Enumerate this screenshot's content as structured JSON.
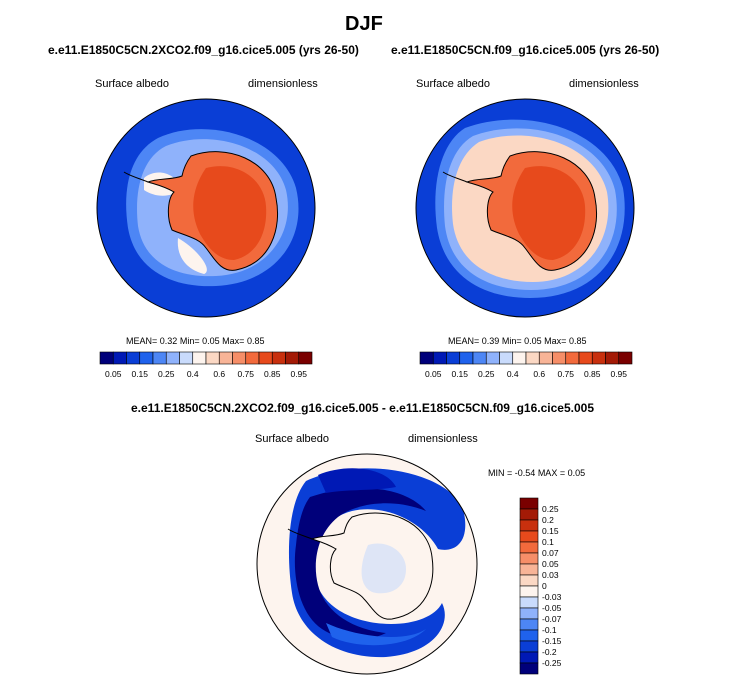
{
  "figure": {
    "title": "DJF"
  },
  "chart_data": [
    {
      "type": "heatmap",
      "projection": "south-polar-stereographic",
      "title": "e.e11.E1850C5CN.2XCO2.f09_g16.cice5.005 (yrs 26-50)",
      "left_label": "Surface albedo",
      "right_label": "dimensionless",
      "stats": {
        "mean_label": "MEAN=",
        "mean": "0.32",
        "min_label": "Min=",
        "min": "0.05",
        "max_label": "Max=",
        "max": "0.85"
      },
      "colorbar": {
        "orientation": "horizontal",
        "tick_labels": [
          "0.05",
          "0.15",
          "0.25",
          "0.4",
          "0.6",
          "0.75",
          "0.85",
          "0.95"
        ],
        "colors": [
          "#00007a",
          "#0019b5",
          "#0a3ed6",
          "#1f62ec",
          "#4d86f5",
          "#8fb2fb",
          "#c9dbfc",
          "#fdf4ee",
          "#fbd8c4",
          "#f8b497",
          "#f68e68",
          "#f26a3c",
          "#e74a1c",
          "#c8300e",
          "#a31a06",
          "#7a0000"
        ]
      }
    },
    {
      "type": "heatmap",
      "projection": "south-polar-stereographic",
      "title": "e.e11.E1850C5CN.f09_g16.cice5.005 (yrs 26-50)",
      "left_label": "Surface albedo",
      "right_label": "dimensionless",
      "stats": {
        "mean_label": "MEAN=",
        "mean": "0.39",
        "min_label": "Min=",
        "min": "0.05",
        "max_label": "Max=",
        "max": "0.85"
      },
      "colorbar": {
        "orientation": "horizontal",
        "tick_labels": [
          "0.05",
          "0.15",
          "0.25",
          "0.4",
          "0.6",
          "0.75",
          "0.85",
          "0.95"
        ],
        "colors": [
          "#00007a",
          "#0019b5",
          "#0a3ed6",
          "#1f62ec",
          "#4d86f5",
          "#8fb2fb",
          "#c9dbfc",
          "#fdf4ee",
          "#fbd8c4",
          "#f8b497",
          "#f68e68",
          "#f26a3c",
          "#e74a1c",
          "#c8300e",
          "#a31a06",
          "#7a0000"
        ]
      }
    },
    {
      "type": "heatmap",
      "projection": "south-polar-stereographic",
      "title": "e.e11.E1850C5CN.2XCO2.f09_g16.cice5.005 - e.e11.E1850C5CN.f09_g16.cice5.005",
      "left_label": "Surface albedo",
      "right_label": "dimensionless",
      "stats": {
        "min_label": "MIN =",
        "min": "-0.54",
        "max_label": "MAX =",
        "max": "0.05"
      },
      "colorbar": {
        "orientation": "vertical",
        "tick_labels": [
          "0.25",
          "0.2",
          "0.15",
          "0.1",
          "0.07",
          "0.05",
          "0.03",
          "0",
          "-0.03",
          "-0.05",
          "-0.07",
          "-0.1",
          "-0.15",
          "-0.2",
          "-0.25"
        ],
        "colors": [
          "#7a0000",
          "#a31a06",
          "#c8300e",
          "#e74a1c",
          "#f26a3c",
          "#f68e68",
          "#f8b497",
          "#fbd8c4",
          "#fdf4ee",
          "#c9dbfc",
          "#8fb2fb",
          "#4d86f5",
          "#1f62ec",
          "#0a3ed6",
          "#0019b5",
          "#00007a"
        ]
      }
    }
  ]
}
